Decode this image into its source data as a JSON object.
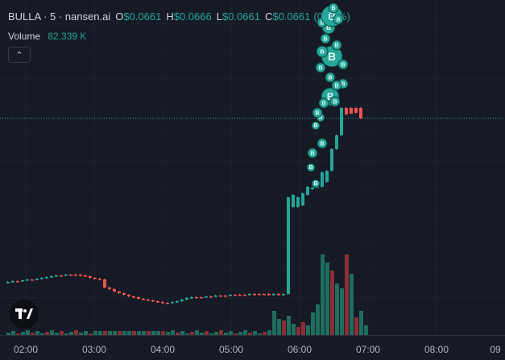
{
  "legend": {
    "symbol": "BULLA · 5 · nansen.ai",
    "open_label": "O",
    "open_value": "$0.0661",
    "high_label": "H",
    "high_value": "$0.0666",
    "low_label": "L",
    "low_value": "$0.0661",
    "close_label": "C",
    "close_value": "$0.0661",
    "change": "(0.00%)"
  },
  "volume": {
    "label": "Volume",
    "value": "82.339 K"
  },
  "collapse_glyph": "⌃",
  "buy_marker_letter": "B",
  "colors": {
    "background": "#161a25",
    "up": "#26a69a",
    "down": "#ef5350",
    "up_volume": "#1e6e5e",
    "down_volume": "#8a2f37",
    "grid": "#1f2330",
    "last_price_line": "#26a69a"
  },
  "time_axis": {
    "labels": [
      "02:00",
      "03:00",
      "04:00",
      "05:00",
      "06:00",
      "07:00",
      "08:00",
      "09"
    ]
  }
}
